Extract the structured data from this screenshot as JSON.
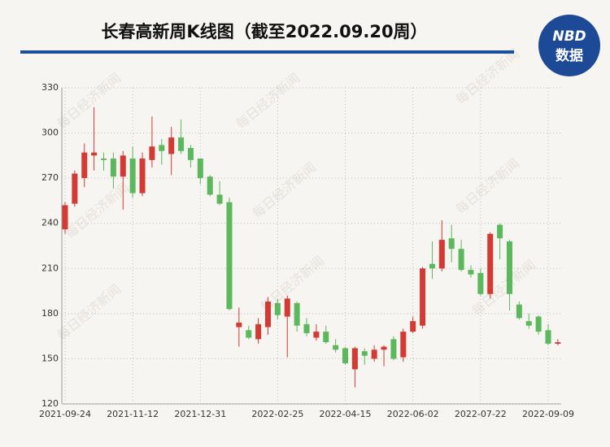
{
  "chart_data": {
    "type": "candlestick",
    "title": "长春高新周K线图（截至2022.09.20周）",
    "logo": {
      "line1": "NBD",
      "line2": "数据"
    },
    "watermark": "每日经济新闻",
    "categories": [
      "2021-09-24",
      null,
      null,
      null,
      null,
      null,
      null,
      "2021-11-12",
      null,
      null,
      null,
      null,
      null,
      null,
      "2021-12-31",
      null,
      null,
      null,
      null,
      null,
      null,
      null,
      "2022-02-25",
      null,
      null,
      null,
      null,
      null,
      null,
      "2022-04-15",
      null,
      null,
      null,
      null,
      null,
      null,
      "2022-06-02",
      null,
      null,
      null,
      null,
      null,
      null,
      "2022-07-22",
      null,
      null,
      null,
      null,
      null,
      null,
      "2022-09-09",
      null
    ],
    "open": [
      236,
      253,
      270,
      285,
      283,
      283,
      271,
      283,
      260,
      282,
      292,
      286,
      297,
      290,
      283,
      271,
      259,
      254,
      171,
      169,
      163,
      171,
      187,
      178,
      187,
      173,
      164,
      168,
      159,
      157,
      143,
      155,
      150,
      156,
      163,
      151,
      168,
      172,
      213,
      210,
      230,
      223,
      209,
      207,
      193,
      239,
      228,
      186,
      175,
      178,
      169,
      160
    ],
    "high": [
      254,
      275,
      293,
      317,
      287,
      287,
      288,
      291,
      287,
      311,
      296,
      304,
      309,
      292,
      283,
      272,
      268,
      257,
      184,
      172,
      177,
      191,
      190,
      192,
      188,
      177,
      173,
      172,
      163,
      158,
      158,
      157,
      159,
      159,
      165,
      170,
      178,
      211,
      228,
      242,
      239,
      229,
      212,
      210,
      234,
      240,
      229,
      188,
      180,
      179,
      173,
      163
    ],
    "low": [
      233,
      251,
      264,
      275,
      275,
      263,
      249,
      257,
      258,
      277,
      279,
      272,
      286,
      277,
      266,
      258,
      252,
      182,
      158,
      163,
      160,
      166,
      176,
      151,
      168,
      165,
      162,
      160,
      154,
      146,
      131,
      146,
      148,
      145,
      149,
      148,
      167,
      170,
      203,
      208,
      214,
      208,
      204,
      192,
      190,
      216,
      182,
      176,
      170,
      166,
      159,
      159
    ],
    "close": [
      252,
      273,
      287,
      287,
      282,
      271,
      285,
      260,
      283,
      291,
      288,
      297,
      288,
      282,
      270,
      259,
      253,
      183,
      174,
      164,
      173,
      188,
      179,
      190,
      172,
      167,
      168,
      161,
      156,
      147,
      157,
      152,
      156,
      158,
      150,
      168,
      175,
      210,
      210,
      229,
      223,
      209,
      206,
      193,
      233,
      230,
      193,
      177,
      172,
      168,
      160,
      161
    ],
    "up_color": "#d23a33",
    "down_color": "#5cb85c",
    "ylim": [
      120,
      330
    ],
    "yticks": [
      120,
      150,
      180,
      210,
      240,
      270,
      300,
      330
    ],
    "grid": true
  }
}
